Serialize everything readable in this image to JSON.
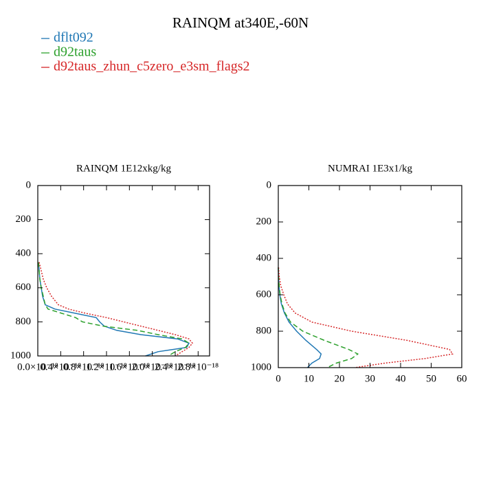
{
  "title": "RAINQM at340E,-60N",
  "chart_data": [
    {
      "type": "line",
      "title": "RAINQM  1E12xkg/kg",
      "y": [
        450,
        500,
        550,
        600,
        650,
        700,
        725,
        750,
        775,
        800,
        825,
        850,
        875,
        900,
        925,
        950,
        975,
        1000
      ],
      "series": [
        {
          "name": "dflt092",
          "color": "#1f77b4",
          "dash": "solid",
          "values": [
            1.2e-20,
            2.4e-20,
            3.6e-20,
            6e-20,
            8.4e-20,
            1.3e-19,
            3e-19,
            6.6e-19,
            1.02e-18,
            1.08e-18,
            1.16e-18,
            1.38e-18,
            1.8e-18,
            2.44e-18,
            2.64e-18,
            2.6e-18,
            2.1e-18,
            1.88e-18
          ]
        },
        {
          "name": "d92taus",
          "color": "#2ca02c",
          "dash": "dashed",
          "values": [
            1.2e-20,
            2.4e-20,
            3.6e-20,
            6e-20,
            9.6e-20,
            1.3e-19,
            1.8e-19,
            4.2e-19,
            6.6e-19,
            7.8e-19,
            1.14e-18,
            1.74e-18,
            2.1e-18,
            2.52e-18,
            2.64e-18,
            2.58e-18,
            2.4e-18,
            2.28e-18
          ]
        },
        {
          "name": "d92taus_zhun_c5zero_e3sm_flags2",
          "color": "#d62728",
          "dash": "dotted",
          "values": [
            2.4e-20,
            6e-20,
            9.6e-20,
            1.56e-19,
            2.4e-19,
            3.6e-19,
            5.4e-19,
            8.4e-19,
            1.2e-18,
            1.5e-18,
            1.8e-18,
            2.1e-18,
            2.4e-18,
            2.64e-18,
            2.7e-18,
            2.64e-18,
            2.52e-18,
            2.4e-18
          ]
        }
      ],
      "xlim": [
        0,
        3e-18
      ],
      "xticks": [
        {
          "value": 0,
          "label": "0.0×10⁻¹⁸"
        },
        {
          "value": 4e-19,
          "label": "0.4×10⁻¹⁸"
        },
        {
          "value": 8e-19,
          "label": "0.8×10⁻¹⁸"
        },
        {
          "value": 1.2e-18,
          "label": "1.2×10⁻¹⁸"
        },
        {
          "value": 1.6e-18,
          "label": "1.6×10⁻¹⁸"
        },
        {
          "value": 2e-18,
          "label": "2.0×10⁻¹⁸"
        },
        {
          "value": 2.4e-18,
          "label": "2.4×10⁻¹⁸"
        },
        {
          "value": 2.8e-18,
          "label": "2.8×10⁻¹⁸"
        }
      ],
      "ylim": [
        0,
        1000
      ],
      "yticks": [
        0,
        200,
        400,
        600,
        800,
        1000
      ],
      "y_inverted": true
    },
    {
      "type": "line",
      "title": "NUMRAI  1E3x1/kg",
      "y": [
        450,
        500,
        550,
        600,
        650,
        700,
        750,
        800,
        850,
        900,
        925,
        950,
        975,
        1000
      ],
      "series": [
        {
          "name": "dflt092",
          "color": "#1f77b4",
          "dash": "solid",
          "values": [
            0,
            0.1,
            0.2,
            0.5,
            1,
            2,
            3.5,
            6,
            9,
            12.5,
            14,
            13.5,
            11,
            9.5
          ]
        },
        {
          "name": "d92taus",
          "color": "#2ca02c",
          "dash": "dashed",
          "values": [
            0,
            0.1,
            0.3,
            0.6,
            1.2,
            2.2,
            4,
            8,
            15,
            23,
            26,
            24,
            19,
            16
          ]
        },
        {
          "name": "d92taus_zhun_c5zero_e3sm_flags2",
          "color": "#d62728",
          "dash": "dotted",
          "values": [
            0.1,
            0.3,
            0.8,
            1.8,
            3,
            5.5,
            11,
            24,
            42,
            56,
            57,
            48,
            35,
            25
          ]
        }
      ],
      "xlim": [
        0,
        60
      ],
      "xticks": [
        0,
        10,
        20,
        30,
        40,
        50,
        60
      ],
      "ylim": [
        0,
        1000
      ],
      "yticks": [
        0,
        200,
        400,
        600,
        800,
        1000
      ],
      "y_inverted": true
    }
  ]
}
